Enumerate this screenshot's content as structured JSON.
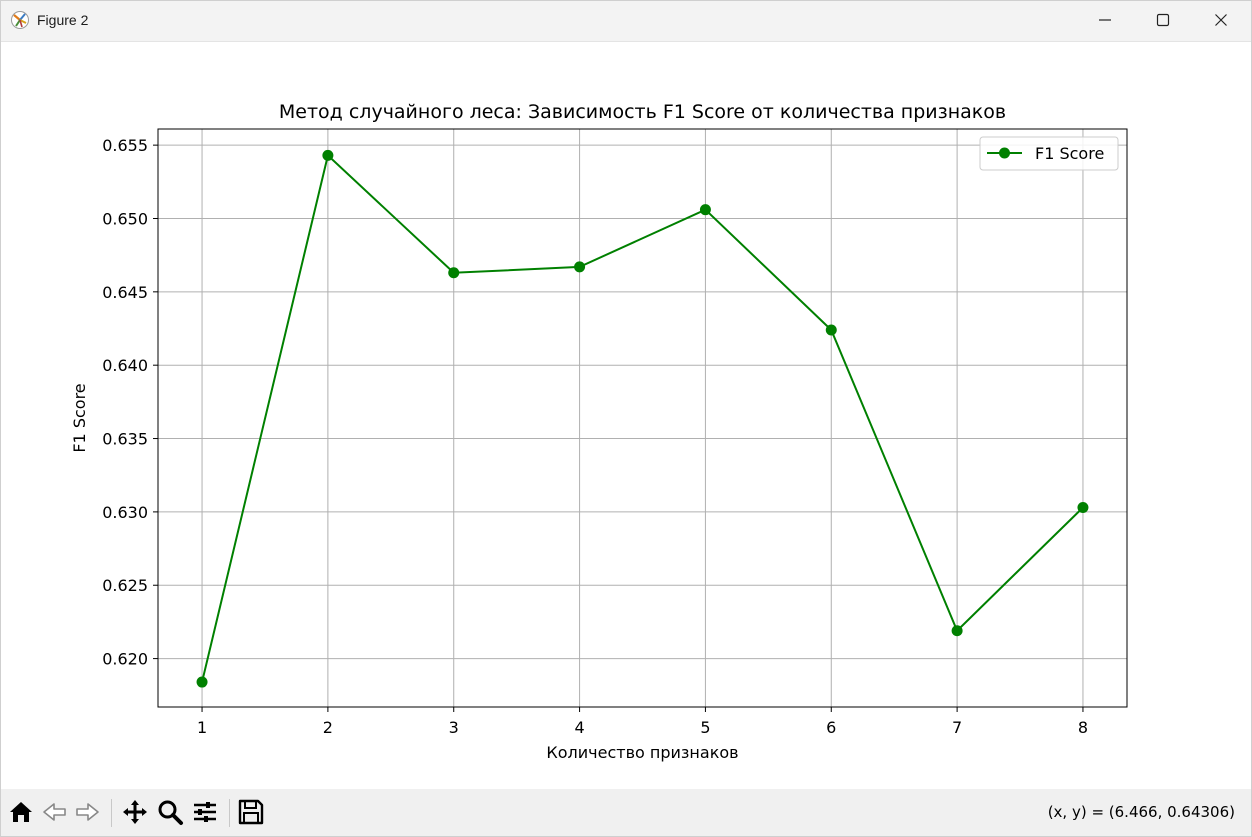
{
  "window": {
    "title": "Figure 2",
    "app_icon": "matplotlib-icon",
    "controls": [
      "minimize-icon",
      "maximize-icon",
      "close-icon"
    ]
  },
  "toolbar": {
    "tools": [
      "home-icon",
      "back-icon",
      "forward-icon",
      "pan-icon",
      "zoom-icon",
      "configure-subplots-icon",
      "save-icon"
    ],
    "coords_text": "(x, y) = (6.466, 0.64306)"
  },
  "chart_data": {
    "type": "line",
    "title": "Метод случайного леса: Зависимость F1 Score от количества признаков",
    "xlabel": "Количество признаков",
    "ylabel": "F1 Score",
    "x": [
      1,
      2,
      3,
      4,
      5,
      6,
      7,
      8
    ],
    "series": [
      {
        "name": "F1 Score",
        "color": "#008000",
        "marker": "circle",
        "values": [
          0.6184,
          0.6543,
          0.6463,
          0.6467,
          0.6506,
          0.6424,
          0.6219,
          0.6303
        ]
      }
    ],
    "xticks": [
      "1",
      "2",
      "3",
      "4",
      "5",
      "6",
      "7",
      "8"
    ],
    "yticks": [
      "0.620",
      "0.625",
      "0.630",
      "0.635",
      "0.640",
      "0.645",
      "0.650",
      "0.655"
    ],
    "xlim": [
      0.65,
      8.35
    ],
    "ylim": [
      0.6167,
      0.6561
    ],
    "grid": true,
    "legend": "top-right"
  }
}
